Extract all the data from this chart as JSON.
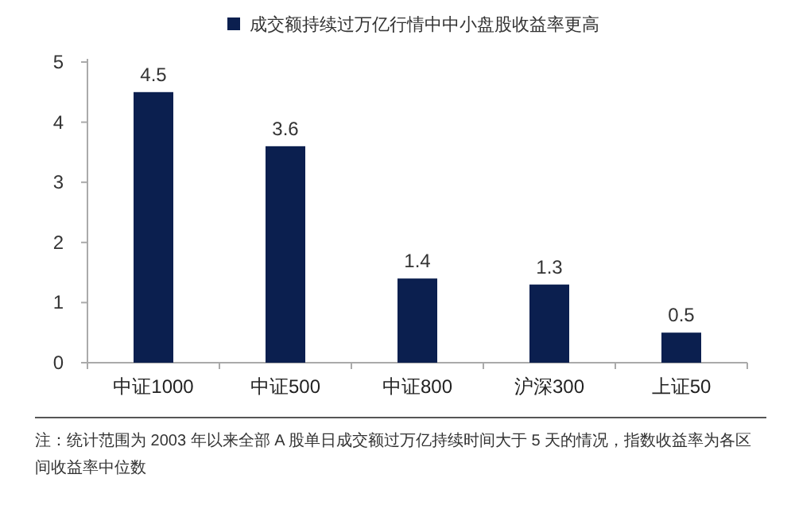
{
  "chart_data": {
    "type": "bar",
    "categories": [
      "中证1000",
      "中证500",
      "中证800",
      "沪深300",
      "上证50"
    ],
    "series": [
      {
        "name": "成交额持续过万亿行情中中小盘股收益率更高",
        "color": "#0b1f4f",
        "values": [
          4.5,
          3.6,
          1.4,
          1.3,
          0.5
        ]
      }
    ],
    "ylim": [
      0,
      5
    ],
    "yticks": [
      0,
      1,
      2,
      3,
      4,
      5
    ],
    "data_labels": true,
    "legend": "top",
    "grid": false,
    "annotations": [
      "注：统计范围为 2003 年以来全部 A 股单日成交额过万亿持续时间大于 5 天的情况，指数收益率为各区间收益率中位数"
    ]
  }
}
